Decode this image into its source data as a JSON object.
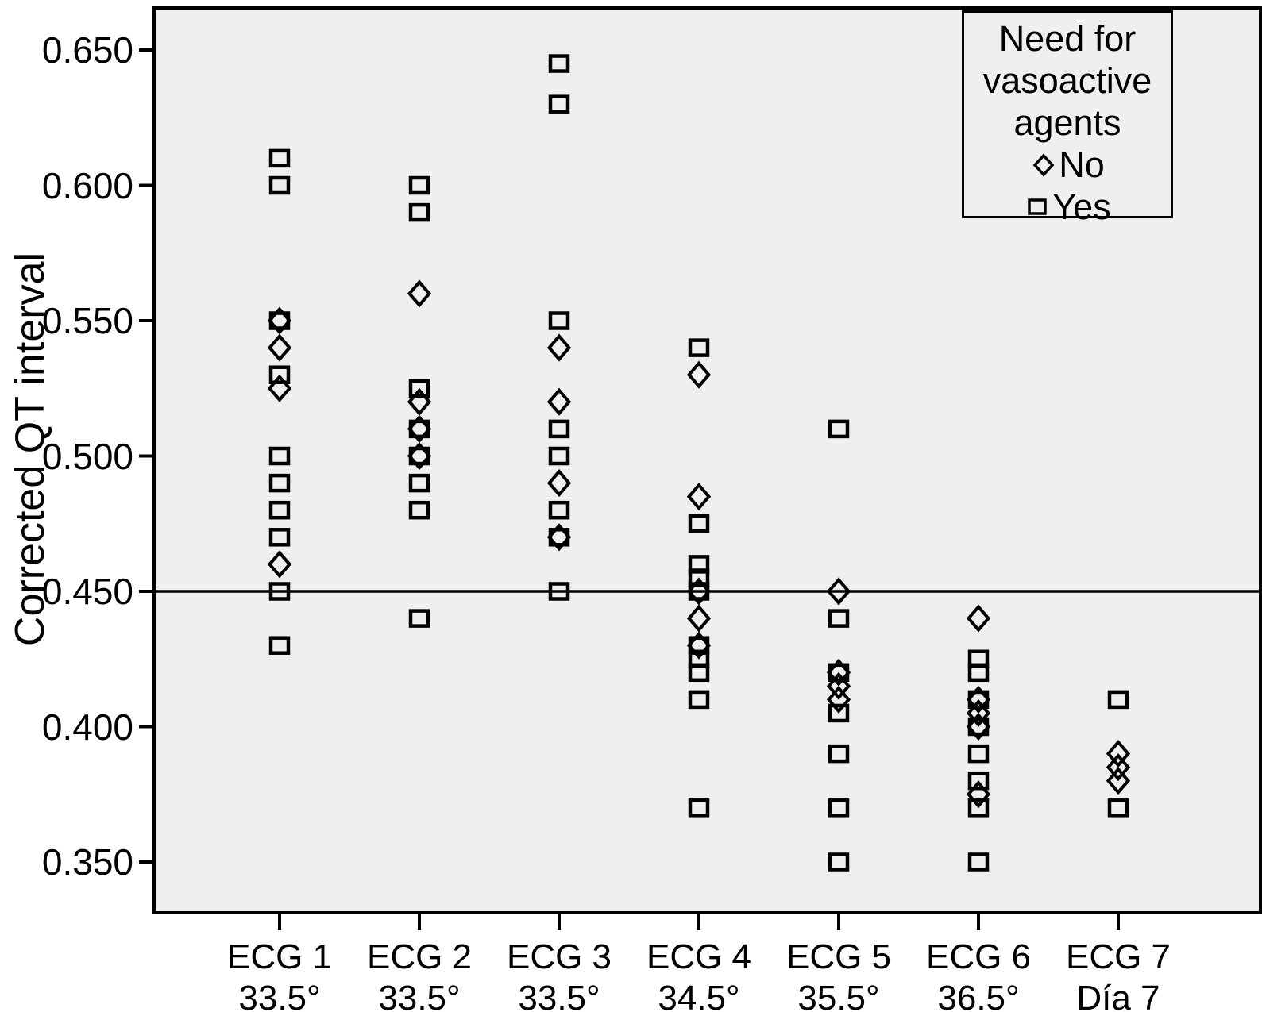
{
  "figure": {
    "legend": {
      "title_lines": [
        "Need for",
        "vasoactive",
        "agents"
      ],
      "entries": [
        {
          "marker": "diamond",
          "label": "No"
        },
        {
          "marker": "square",
          "label": "Yes"
        }
      ]
    },
    "colors": {
      "plot_background": "#efefef",
      "foreground": "#000000",
      "page_background": "#ffffff"
    }
  },
  "chart_data": {
    "type": "scatter",
    "title": "",
    "xlabel": "",
    "ylabel": "Corrected QT interval",
    "ylim": [
      0.33,
      0.668
    ],
    "yticks": [
      0.65,
      0.6,
      0.55,
      0.5,
      0.45,
      0.4,
      0.35
    ],
    "reference_line_y": 0.45,
    "grid": false,
    "legend_position": "top-right",
    "categories": [
      {
        "line1": "ECG 1",
        "line2": "33.5°"
      },
      {
        "line1": "ECG 2",
        "line2": "33.5°"
      },
      {
        "line1": "ECG 3",
        "line2": "33.5°"
      },
      {
        "line1": "ECG 4",
        "line2": "34.5°"
      },
      {
        "line1": "ECG 5",
        "line2": "35.5°"
      },
      {
        "line1": "ECG 6",
        "line2": "36.5°"
      },
      {
        "line1": "ECG 7",
        "line2": "Día 7"
      }
    ],
    "series": [
      {
        "name": "Yes",
        "marker": "square",
        "points": [
          [
            0,
            0.61
          ],
          [
            0,
            0.6
          ],
          [
            0,
            0.55
          ],
          [
            0,
            0.53
          ],
          [
            0,
            0.5
          ],
          [
            0,
            0.49
          ],
          [
            0,
            0.48
          ],
          [
            0,
            0.47
          ],
          [
            0,
            0.45
          ],
          [
            0,
            0.43
          ],
          [
            1,
            0.6
          ],
          [
            1,
            0.59
          ],
          [
            1,
            0.525
          ],
          [
            1,
            0.51
          ],
          [
            1,
            0.5
          ],
          [
            1,
            0.49
          ],
          [
            1,
            0.48
          ],
          [
            1,
            0.44
          ],
          [
            2,
            0.645
          ],
          [
            2,
            0.63
          ],
          [
            2,
            0.55
          ],
          [
            2,
            0.51
          ],
          [
            2,
            0.5
          ],
          [
            2,
            0.48
          ],
          [
            2,
            0.47
          ],
          [
            2,
            0.45
          ],
          [
            3,
            0.54
          ],
          [
            3,
            0.475
          ],
          [
            3,
            0.46
          ],
          [
            3,
            0.455
          ],
          [
            3,
            0.45
          ],
          [
            3,
            0.43
          ],
          [
            3,
            0.425
          ],
          [
            3,
            0.42
          ],
          [
            3,
            0.41
          ],
          [
            3,
            0.37
          ],
          [
            4,
            0.51
          ],
          [
            4,
            0.44
          ],
          [
            4,
            0.42
          ],
          [
            4,
            0.405
          ],
          [
            4,
            0.39
          ],
          [
            4,
            0.37
          ],
          [
            4,
            0.35
          ],
          [
            5,
            0.425
          ],
          [
            5,
            0.42
          ],
          [
            5,
            0.41
          ],
          [
            5,
            0.4
          ],
          [
            5,
            0.39
          ],
          [
            5,
            0.38
          ],
          [
            5,
            0.37
          ],
          [
            5,
            0.35
          ],
          [
            6,
            0.41
          ],
          [
            6,
            0.37
          ]
        ]
      },
      {
        "name": "No",
        "marker": "diamond",
        "points": [
          [
            0,
            0.55
          ],
          [
            0,
            0.54
          ],
          [
            0,
            0.525
          ],
          [
            0,
            0.46
          ],
          [
            1,
            0.56
          ],
          [
            1,
            0.52
          ],
          [
            1,
            0.51
          ],
          [
            1,
            0.5
          ],
          [
            2,
            0.54
          ],
          [
            2,
            0.52
          ],
          [
            2,
            0.49
          ],
          [
            2,
            0.47
          ],
          [
            3,
            0.53
          ],
          [
            3,
            0.485
          ],
          [
            3,
            0.45
          ],
          [
            3,
            0.44
          ],
          [
            3,
            0.43
          ],
          [
            4,
            0.45
          ],
          [
            4,
            0.42
          ],
          [
            4,
            0.415
          ],
          [
            4,
            0.41
          ],
          [
            5,
            0.44
          ],
          [
            5,
            0.41
          ],
          [
            5,
            0.405
          ],
          [
            5,
            0.4
          ],
          [
            5,
            0.375
          ],
          [
            6,
            0.39
          ],
          [
            6,
            0.385
          ],
          [
            6,
            0.38
          ]
        ]
      }
    ]
  }
}
